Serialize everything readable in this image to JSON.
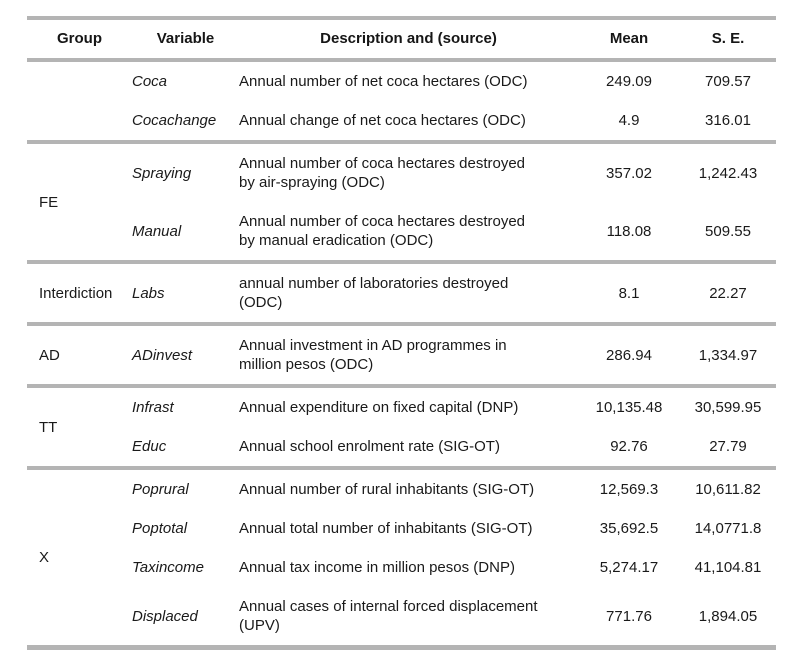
{
  "style": {
    "border_color": "#b4b4b4",
    "text_color": "#1a1a1a",
    "background": "#ffffff"
  },
  "table": {
    "headers": {
      "group": "Group",
      "variable": "Variable",
      "description": "Description and (source)",
      "mean": "Mean",
      "se": "S. E."
    },
    "sections": [
      {
        "group": "",
        "rows": [
          {
            "variable": "Coca",
            "description": "Annual number of net coca hectares (ODC)",
            "mean": "249.09",
            "se": "709.57"
          },
          {
            "variable": "Cocachange",
            "description": "Annual change of net coca hectares (ODC)",
            "mean": "4.9",
            "se": "316.01"
          }
        ]
      },
      {
        "group": "FE",
        "rows": [
          {
            "variable": "Spraying",
            "description": "Annual number of coca hectares destroyed by air-spraying (ODC)",
            "mean": "357.02",
            "se": "1,242.43"
          },
          {
            "variable": "Manual",
            "description": "Annual number of coca hectares destroyed by manual eradication (ODC)",
            "mean": "118.08",
            "se": "509.55"
          }
        ]
      },
      {
        "group": "Interdiction",
        "rows": [
          {
            "variable": "Labs",
            "description": "annual number of laboratories destroyed (ODC)",
            "mean": "8.1",
            "se": "22.27"
          }
        ]
      },
      {
        "group": "AD",
        "rows": [
          {
            "variable": "ADinvest",
            "description": "Annual investment in AD programmes in million pesos (ODC)",
            "mean": "286.94",
            "se": "1,334.97"
          }
        ]
      },
      {
        "group": "TT",
        "rows": [
          {
            "variable": "Infrast",
            "description": "Annual expenditure on fixed capital (DNP)",
            "mean": "10,135.48",
            "se": "30,599.95"
          },
          {
            "variable": "Educ",
            "description": "Annual school enrolment rate (SIG-OT)",
            "mean": "92.76",
            "se": "27.79"
          }
        ]
      },
      {
        "group": "X",
        "rows": [
          {
            "variable": "Poprural",
            "description": "Annual number of rural inhabitants (SIG-OT)",
            "mean": "12,569.3",
            "se": "10,611.82"
          },
          {
            "variable": "Poptotal",
            "description": "Annual total number of inhabitants (SIG-OT)",
            "mean": "35,692.5",
            "se": "14,0771.8"
          },
          {
            "variable": "Taxincome",
            "description": "Annual tax income in million pesos (DNP)",
            "mean": "5,274.17",
            "se": "41,104.81"
          },
          {
            "variable": "Displaced",
            "description": "Annual cases of internal forced displacement (UPV)",
            "mean": "771.76",
            "se": "1,894.05"
          }
        ]
      }
    ]
  }
}
